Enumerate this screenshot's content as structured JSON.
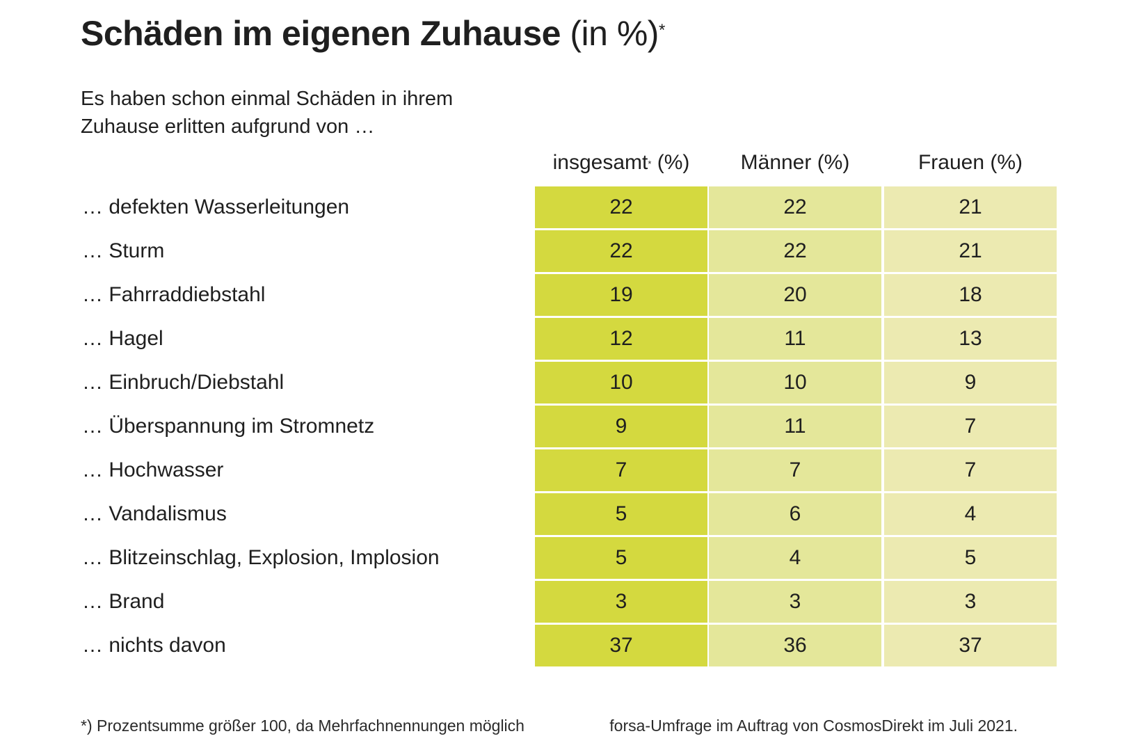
{
  "header": {
    "title_bold": "Schäden im eigenen Zuhause",
    "title_light": "(in %)",
    "title_mark": "*",
    "subtitle": "Es haben schon einmal Schäden in ihrem Zuhause erlitten aufgrund von …"
  },
  "colors": {
    "col1": "#d4d93f",
    "col2": "#e4e79a",
    "col3": "#eceab1"
  },
  "chart_data": {
    "type": "table",
    "columns": [
      {
        "label": "insgesamt",
        "mark": "*",
        "suffix": " (%)"
      },
      {
        "label": "Männer",
        "mark": "",
        "suffix": " (%)"
      },
      {
        "label": "Frauen",
        "mark": "",
        "suffix": " (%)"
      }
    ],
    "rows": [
      {
        "label": "… defekten Wasserleitungen",
        "values": [
          22,
          22,
          21
        ]
      },
      {
        "label": "… Sturm",
        "values": [
          22,
          22,
          21
        ]
      },
      {
        "label": "… Fahrraddiebstahl",
        "values": [
          19,
          20,
          18
        ]
      },
      {
        "label": "… Hagel",
        "values": [
          12,
          11,
          13
        ]
      },
      {
        "label": "… Einbruch/Diebstahl",
        "values": [
          10,
          10,
          9
        ]
      },
      {
        "label": "… Überspannung im Stromnetz",
        "values": [
          9,
          11,
          7
        ]
      },
      {
        "label": "… Hochwasser",
        "values": [
          7,
          7,
          7
        ]
      },
      {
        "label": "… Vandalismus",
        "values": [
          5,
          6,
          4
        ]
      },
      {
        "label": "… Blitzeinschlag, Explosion, Implosion",
        "values": [
          5,
          4,
          5
        ]
      },
      {
        "label": "… Brand",
        "values": [
          3,
          3,
          3
        ]
      },
      {
        "label": "… nichts davon",
        "values": [
          37,
          36,
          37
        ]
      }
    ]
  },
  "footer": {
    "note": "*) Prozentsumme größer 100, da Mehrfachnennungen möglich",
    "source": "forsa-Umfrage im Auftrag von CosmosDirekt im Juli 2021."
  }
}
